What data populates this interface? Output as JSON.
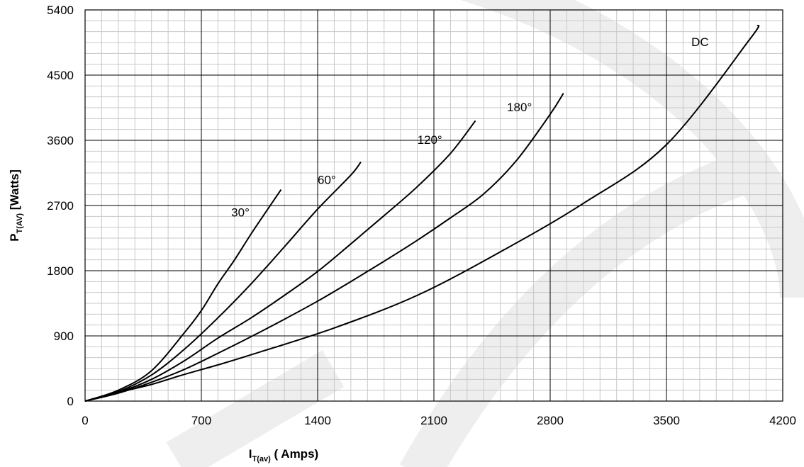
{
  "chart_data": {
    "type": "line",
    "xlabel": {
      "main": "I",
      "sub": "T(av)",
      "rest": " ( Amps)"
    },
    "ylabel": {
      "main": "P",
      "sub": "T(AV)",
      "rest": " [Watts]"
    },
    "xlim": [
      0,
      4200
    ],
    "ylim": [
      0,
      5400
    ],
    "x_ticks": [
      "0",
      "700",
      "1400",
      "2100",
      "2800",
      "3500",
      "4200"
    ],
    "y_ticks": [
      "0",
      "900",
      "1800",
      "2700",
      "3600",
      "4500",
      "5400"
    ],
    "x_tick_values": [
      0,
      700,
      1400,
      2100,
      2800,
      3500,
      4200
    ],
    "y_tick_values": [
      0,
      900,
      1800,
      2700,
      3600,
      4500,
      5400
    ],
    "x_minor_step": 100,
    "y_minor_step": 150,
    "grid": true,
    "series": [
      {
        "name": "30°",
        "label_at": [
          880,
          2550
        ],
        "points": [
          [
            0,
            0
          ],
          [
            200,
            150
          ],
          [
            400,
            420
          ],
          [
            600,
            950
          ],
          [
            700,
            1250
          ],
          [
            800,
            1620
          ],
          [
            900,
            1950
          ],
          [
            1000,
            2310
          ],
          [
            1100,
            2650
          ],
          [
            1180,
            2920
          ]
        ]
      },
      {
        "name": "60°",
        "label_at": [
          1400,
          3000
        ],
        "points": [
          [
            0,
            0
          ],
          [
            200,
            130
          ],
          [
            400,
            360
          ],
          [
            600,
            720
          ],
          [
            800,
            1150
          ],
          [
            1000,
            1620
          ],
          [
            1200,
            2130
          ],
          [
            1400,
            2650
          ],
          [
            1600,
            3120
          ],
          [
            1660,
            3300
          ]
        ]
      },
      {
        "name": "120°",
        "label_at": [
          2000,
          3550
        ],
        "points": [
          [
            0,
            0
          ],
          [
            200,
            120
          ],
          [
            400,
            300
          ],
          [
            600,
            560
          ],
          [
            800,
            870
          ],
          [
            1000,
            1150
          ],
          [
            1200,
            1460
          ],
          [
            1400,
            1790
          ],
          [
            1600,
            2170
          ],
          [
            1800,
            2560
          ],
          [
            2000,
            2960
          ],
          [
            2200,
            3420
          ],
          [
            2350,
            3870
          ]
        ]
      },
      {
        "name": "180°",
        "label_at": [
          2540,
          4000
        ],
        "points": [
          [
            0,
            0
          ],
          [
            200,
            110
          ],
          [
            400,
            260
          ],
          [
            600,
            440
          ],
          [
            800,
            660
          ],
          [
            1000,
            890
          ],
          [
            1200,
            1130
          ],
          [
            1400,
            1380
          ],
          [
            1600,
            1650
          ],
          [
            1800,
            1930
          ],
          [
            2000,
            2220
          ],
          [
            2200,
            2530
          ],
          [
            2400,
            2860
          ],
          [
            2600,
            3330
          ],
          [
            2800,
            3960
          ],
          [
            2880,
            4250
          ]
        ]
      },
      {
        "name": "DC",
        "label_at": [
          3650,
          4900
        ],
        "points": [
          [
            0,
            0
          ],
          [
            200,
            120
          ],
          [
            400,
            230
          ],
          [
            600,
            370
          ],
          [
            800,
            500
          ],
          [
            1000,
            640
          ],
          [
            1500,
            1010
          ],
          [
            2000,
            1460
          ],
          [
            2500,
            2060
          ],
          [
            3000,
            2730
          ],
          [
            3500,
            3540
          ],
          [
            4000,
            4990
          ],
          [
            4050,
            5190
          ]
        ]
      }
    ]
  }
}
